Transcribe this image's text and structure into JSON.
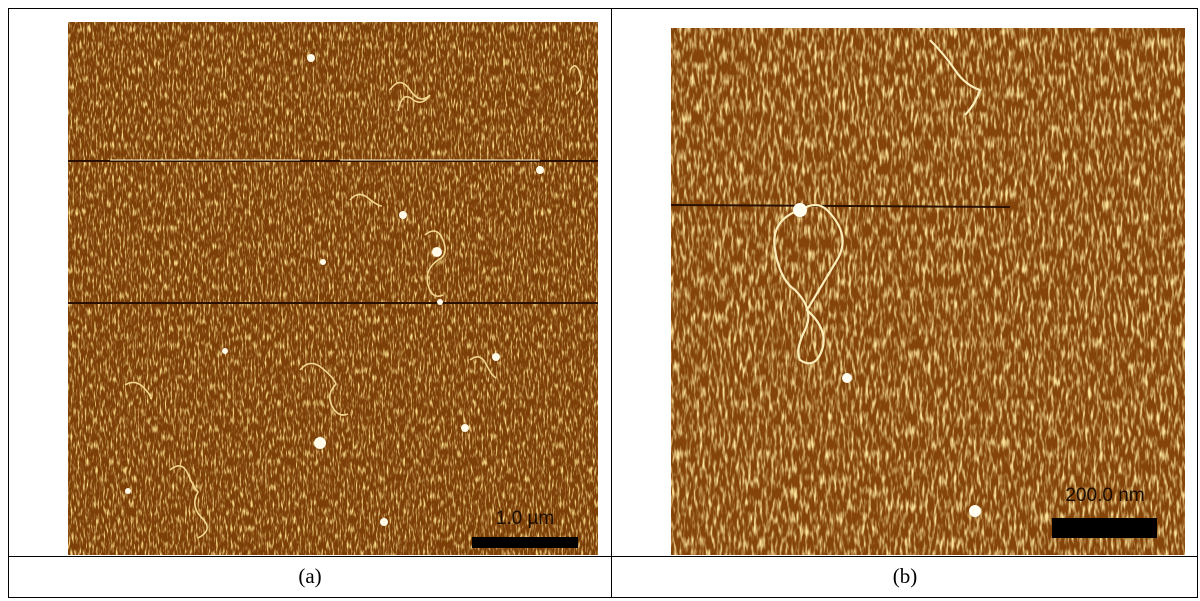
{
  "figure": {
    "panels": [
      {
        "scale_label": "1.0 µm",
        "caption": "(a)"
      },
      {
        "scale_label": "200.0 nm",
        "caption": "(b)"
      }
    ]
  }
}
